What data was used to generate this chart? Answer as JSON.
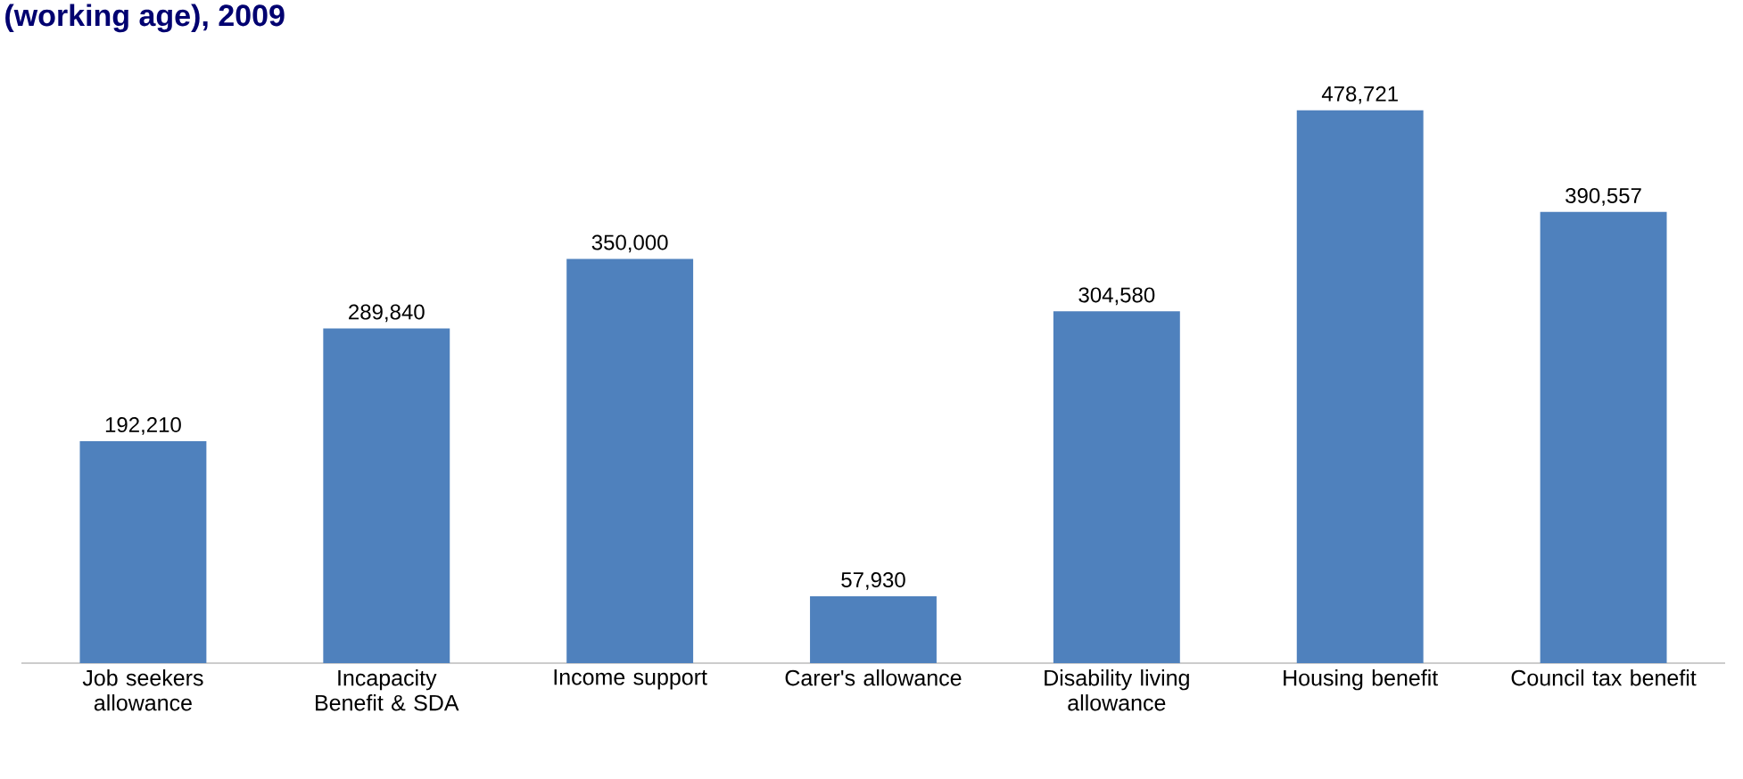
{
  "chart_data": {
    "type": "bar",
    "title": "(working age), 2009",
    "categories": [
      "Job seekers allowance",
      "Incapacity Benefit & SDA",
      "Income support",
      "Carer's allowance",
      "Disability living allowance",
      "Housing benefit",
      "Council tax benefit"
    ],
    "values": [
      192210,
      289840,
      350000,
      57930,
      304580,
      478721,
      390557
    ],
    "value_labels": [
      "192,210",
      "289,840",
      "350,000",
      "57,930",
      "304,580",
      "478,721",
      "390,557"
    ],
    "color": "#4f81bd"
  }
}
